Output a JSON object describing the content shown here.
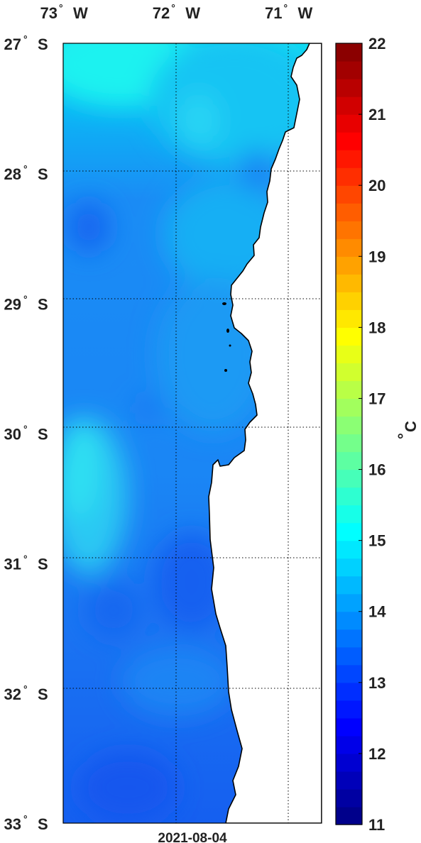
{
  "map": {
    "date": "2021-08-04",
    "longitude_ticks": [
      {
        "label": "73",
        "unit": "W",
        "value": -73
      },
      {
        "label": "72",
        "unit": "W",
        "value": -72
      },
      {
        "label": "71",
        "unit": "W",
        "value": -71
      }
    ],
    "latitude_ticks": [
      {
        "label": "27",
        "unit": "S",
        "value": -27
      },
      {
        "label": "28",
        "unit": "S",
        "value": -28
      },
      {
        "label": "29",
        "unit": "S",
        "value": -29
      },
      {
        "label": "30",
        "unit": "S",
        "value": -30
      },
      {
        "label": "31",
        "unit": "S",
        "value": -31
      },
      {
        "label": "32",
        "unit": "S",
        "value": -32
      },
      {
        "label": "33",
        "unit": "S",
        "value": -33
      }
    ],
    "degree_symbol": "°",
    "lon_range": [
      -73,
      -70.7
    ],
    "lat_range": [
      -33,
      -27
    ],
    "grid": "dotted"
  },
  "colorbar": {
    "min": 11,
    "max": 22,
    "ticks": [
      "11",
      "12",
      "13",
      "14",
      "15",
      "16",
      "17",
      "18",
      "19",
      "20",
      "21",
      "22"
    ],
    "unit_symbol": "°",
    "unit_letter": "C",
    "colormap": "jet"
  },
  "colors": {
    "land": "#ffffff",
    "coast": "#000000",
    "frame": "#000000"
  }
}
